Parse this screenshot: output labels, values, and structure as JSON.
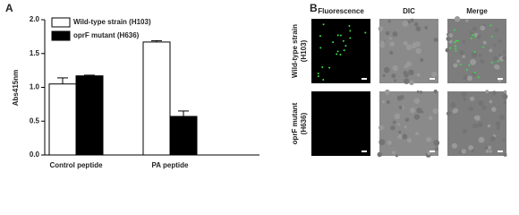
{
  "panel_a_label": "A",
  "chart_data": {
    "type": "bar",
    "y_label": "Abs415nm",
    "categories": [
      "Control peptide",
      "PA peptide"
    ],
    "series": [
      {
        "name": "Wild-type strain (H103)",
        "color": "#ffffff",
        "values": [
          1.05,
          1.67
        ],
        "errors": [
          0.09,
          0.02
        ]
      },
      {
        "name": "oprF mutant (H636)",
        "color": "#000000",
        "values": [
          1.17,
          0.57
        ],
        "errors": [
          0.01,
          0.08
        ]
      }
    ],
    "ylim": [
      0,
      2.0
    ],
    "yticks": [
      {
        "value": 0,
        "label": "0.0"
      },
      0.5,
      {
        "value": 1,
        "label": "1.0"
      },
      1.5,
      {
        "value": 2,
        "label": "2.0"
      }
    ],
    "legend": "upper left"
  },
  "panel_b": {
    "label": "B",
    "columns": [
      "Fluorescence",
      "DIC",
      "Merge"
    ],
    "rows": [
      [
        "Wild-type strain",
        "(H103)"
      ],
      [
        "oprF mutant",
        "(H636)"
      ]
    ]
  }
}
